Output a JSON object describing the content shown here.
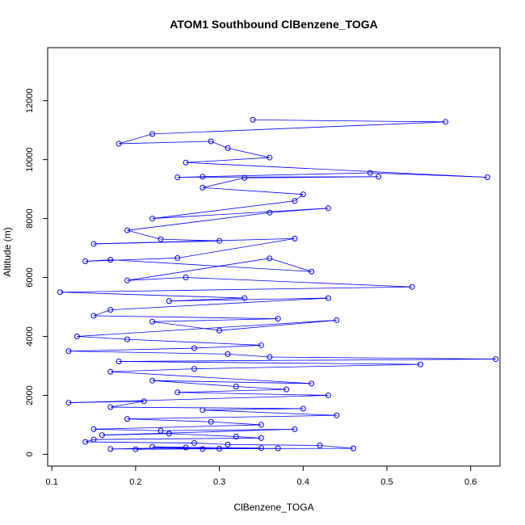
{
  "chart_data": {
    "type": "line",
    "title": "ATOM1 Southbound ClBenzene_TOGA",
    "xlabel": "ClBenzene_TOGA",
    "ylabel": "Altitude (m)",
    "xlim": [
      0.095,
      0.635
    ],
    "ylim": [
      -400,
      13800
    ],
    "xticks": [
      0.1,
      0.2,
      0.3,
      0.4,
      0.5,
      0.6
    ],
    "yticks": [
      0,
      2000,
      4000,
      6000,
      8000,
      10000,
      12000
    ],
    "xtick_labels": [
      "0.1",
      "0.2",
      "0.3",
      "0.4",
      "0.5",
      "0.6"
    ],
    "ytick_labels": [
      "0",
      "2000",
      "4000",
      "6000",
      "8000",
      "10000",
      "12000"
    ],
    "grid": false,
    "series_color": "#0000ff",
    "marker": "open-circle",
    "series": [
      {
        "x": [
          0.34,
          0.57,
          0.22,
          0.18,
          0.29,
          0.31,
          0.36,
          0.26,
          0.62,
          0.48,
          0.28,
          0.25,
          0.49,
          0.33,
          0.28,
          0.4,
          0.39,
          0.22,
          0.43,
          0.36,
          0.19,
          0.23,
          0.3,
          0.15,
          0.39,
          0.25,
          0.14,
          0.17,
          0.41,
          0.36,
          0.19,
          0.26,
          0.53,
          0.11,
          0.33,
          0.24,
          0.43,
          0.17,
          0.15,
          0.37,
          0.22,
          0.3,
          0.44,
          0.13,
          0.19,
          0.35,
          0.27,
          0.12,
          0.31,
          0.36,
          0.63,
          0.18,
          0.54,
          0.27,
          0.17,
          0.41,
          0.22,
          0.32,
          0.38,
          0.25,
          0.43,
          0.12,
          0.21,
          0.17,
          0.4,
          0.28,
          0.44,
          0.19,
          0.29,
          0.35,
          0.15,
          0.23,
          0.39,
          0.16,
          0.24,
          0.32,
          0.35,
          0.15,
          0.14,
          0.27,
          0.31,
          0.42,
          0.46,
          0.17,
          0.26,
          0.3,
          0.2,
          0.35,
          0.22,
          0.28,
          0.37
        ],
        "y": [
          11350,
          11280,
          10870,
          10540,
          10620,
          10390,
          10070,
          9900,
          9400,
          9550,
          9420,
          9400,
          9420,
          9380,
          9050,
          8820,
          8600,
          8000,
          8350,
          8200,
          7600,
          7300,
          7240,
          7140,
          7320,
          6660,
          6550,
          6600,
          6200,
          6650,
          5900,
          6000,
          5680,
          5500,
          5300,
          5200,
          5300,
          4900,
          4700,
          4600,
          4500,
          4200,
          4550,
          4000,
          3900,
          3700,
          3600,
          3500,
          3400,
          3300,
          3230,
          3150,
          3050,
          2900,
          2800,
          2400,
          2500,
          2300,
          2200,
          2100,
          2000,
          1750,
          1800,
          1600,
          1550,
          1500,
          1320,
          1200,
          1100,
          1000,
          850,
          800,
          850,
          650,
          700,
          600,
          550,
          500,
          420,
          380,
          330,
          300,
          200,
          180,
          230,
          190,
          170,
          210,
          250,
          180,
          200
        ]
      }
    ]
  }
}
